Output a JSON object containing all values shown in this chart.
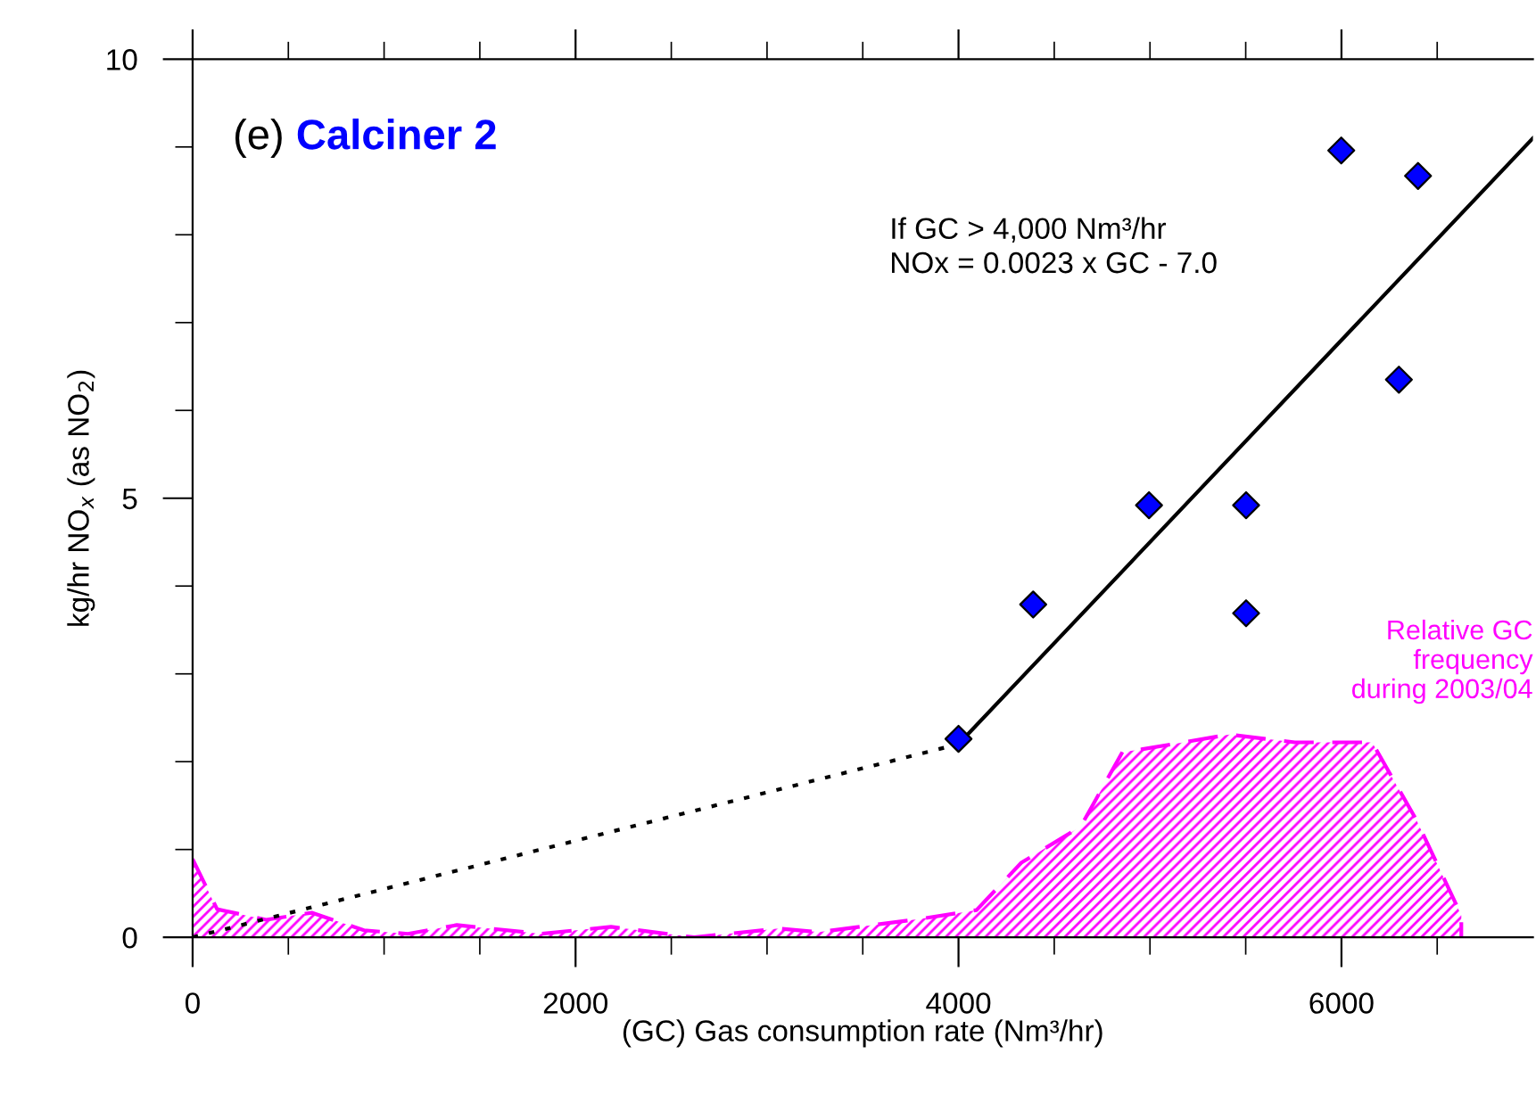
{
  "chart_data": {
    "type": "scatter",
    "title": "Calciner 2",
    "xlabel": "(GC) Gas consumption rate (Nm³/hr)",
    "ylabel": "kg/hr NO$_{x}$ (as NO$_{2}$)",
    "annotations": [
      "(e)",
      "If GC > 4,000 Nm³/hr\nNOx = 0.0023 x GC - 7.0"
    ],
    "series": [
      {
        "type": "area",
        "name": "Relative GC\nfrequency\nduring 2003/04",
        "color": "#ff00ff",
        "line_style": "dashed",
        "x": [
          0,
          128,
          384,
          622,
          895,
          1124,
          1380,
          1820,
          2185,
          2620,
          3060,
          3271,
          3800,
          4094,
          4328,
          4638,
          4856,
          4955,
          5415,
          5757,
          6160,
          6393,
          6626,
          6626
        ],
        "values": [
          0.89,
          0.32,
          0.2,
          0.28,
          0.08,
          0.04,
          0.14,
          0.04,
          0.12,
          0,
          0.1,
          0.06,
          0.21,
          0.31,
          0.85,
          1.26,
          2.11,
          2.14,
          2.31,
          2.22,
          2.22,
          1.33,
          0.25,
          0
        ]
      },
      {
        "type": "line",
        "color": "#000000",
        "line_style": "dotted",
        "marker": "none",
        "x": [
          0,
          4000
        ],
        "values": [
          0,
          2.2
        ]
      },
      {
        "type": "line",
        "color": "#000000",
        "line_style": "solid",
        "marker": "none",
        "x": [
          4000,
          7000
        ],
        "values": [
          2.2,
          9.1
        ]
      },
      {
        "color": "#0000ff",
        "marker": "diamond",
        "x": [
          4000,
          4390,
          4995,
          5502,
          5502,
          5999,
          6300,
          6400
        ],
        "values": [
          2.26,
          3.79,
          4.92,
          4.92,
          3.69,
          8.96,
          6.35,
          8.67
        ]
      }
    ],
    "xlim": [
      0,
      7000
    ],
    "ylim": [
      0,
      10
    ],
    "xticks": [
      0,
      {
        "value": 500,
        "label": null
      },
      {
        "value": 1000,
        "label": null
      },
      {
        "value": 1500,
        "label": null
      },
      2000,
      {
        "value": 2500,
        "label": null
      },
      {
        "value": 3000,
        "label": null
      },
      {
        "value": 3500,
        "label": null
      },
      4000,
      {
        "value": 4500,
        "label": null
      },
      {
        "value": 5000,
        "label": null
      },
      {
        "value": 5500,
        "label": null
      },
      6000,
      {
        "value": 6500,
        "label": null
      }
    ],
    "yticks": [
      0,
      {
        "value": 1,
        "label": null
      },
      {
        "value": 2,
        "label": null
      },
      {
        "value": 3,
        "label": null
      },
      {
        "value": 4,
        "label": null
      },
      5,
      {
        "value": 6,
        "label": null
      },
      {
        "value": 7,
        "label": null
      },
      {
        "value": 8,
        "label": null
      },
      {
        "value": 9,
        "label": null
      },
      10
    ],
    "grid": false,
    "legend": false
  }
}
